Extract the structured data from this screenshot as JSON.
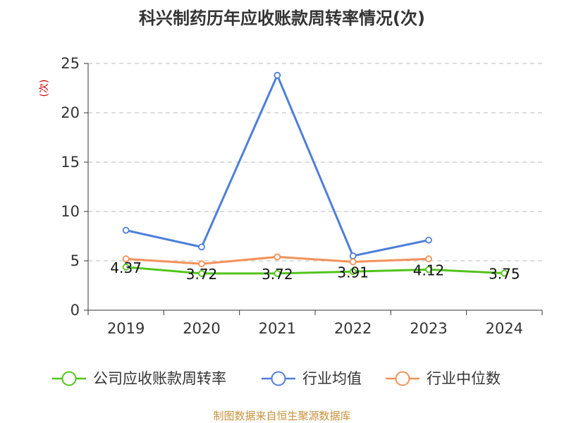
{
  "chart_data": {
    "type": "line",
    "title": "科兴制药历年应收账款周转率情况(次)",
    "ylabel": "(次)",
    "ylabel_color": "#cc0000",
    "categories": [
      "2019",
      "2020",
      "2021",
      "2022",
      "2023",
      "2024"
    ],
    "ylim": [
      0,
      25
    ],
    "yticks": [
      0,
      5,
      10,
      15,
      20,
      25
    ],
    "grid": "horizontal-dashed",
    "legend_position": "bottom",
    "series": [
      {
        "name": "公司应收账款周转率",
        "color": "#52c41a",
        "values": [
          4.37,
          3.72,
          3.72,
          3.91,
          4.12,
          3.75
        ],
        "labels": [
          "4.37",
          "3.72",
          "3.72",
          "3.91",
          "4.12",
          "3.75"
        ]
      },
      {
        "name": "行业均值",
        "color": "#4e7fd9",
        "values": [
          8.1,
          6.4,
          23.8,
          5.5,
          7.1,
          null
        ]
      },
      {
        "name": "行业中位数",
        "color": "#f4915a",
        "values": [
          5.2,
          4.7,
          5.4,
          4.9,
          5.2,
          null
        ]
      }
    ]
  },
  "footer": {
    "source": "制图数据来自恒生聚源数据库"
  }
}
